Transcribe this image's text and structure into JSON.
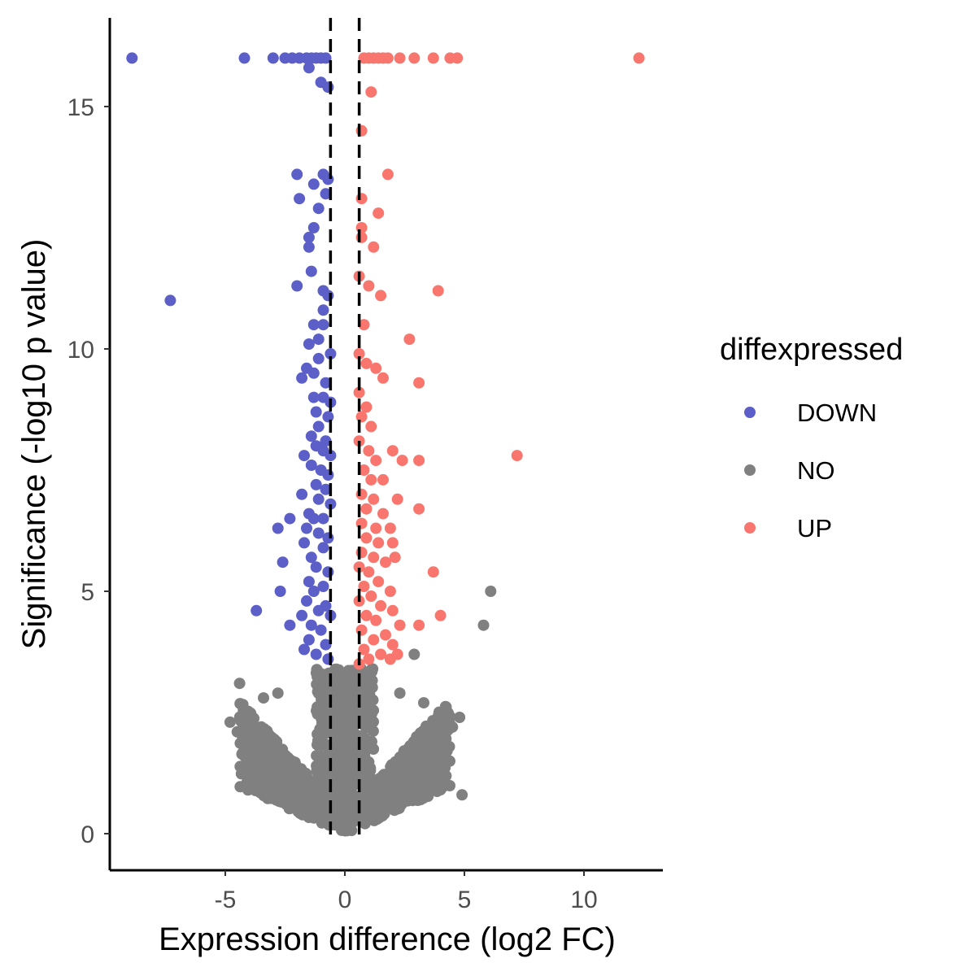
{
  "chart_data": {
    "type": "scatter",
    "title": "",
    "xlabel": "Expression difference (log2 FC)",
    "ylabel": "Significance (-log10 p value)",
    "xlim": [
      -9.5,
      13.5
    ],
    "ylim": [
      -0.7,
      17.0
    ],
    "x_ticks": [
      -5,
      0,
      5,
      10
    ],
    "x_tick_labels": [
      "-5",
      "0",
      "5",
      "10"
    ],
    "y_ticks": [
      0,
      5,
      10,
      15
    ],
    "y_tick_labels": [
      "0",
      "5",
      "10",
      "15"
    ],
    "grid": false,
    "vlines": [
      -0.6,
      0.6
    ],
    "legend": {
      "title": "diffexpressed",
      "position": "right",
      "entries": [
        {
          "label": "DOWN",
          "color": "#5b5fc7"
        },
        {
          "label": "NO",
          "color": "#808080"
        },
        {
          "label": "UP",
          "color": "#f8766d"
        }
      ]
    },
    "series": [
      {
        "name": "DOWN",
        "color": "#5b5fc7",
        "points": [
          [
            -8.9,
            16.0
          ],
          [
            -4.2,
            16.0
          ],
          [
            -3.0,
            16.0
          ],
          [
            -2.5,
            16.0
          ],
          [
            -2.2,
            16.0
          ],
          [
            -1.9,
            16.0
          ],
          [
            -1.6,
            16.0
          ],
          [
            -1.4,
            16.0
          ],
          [
            -1.2,
            16.0
          ],
          [
            -1.0,
            16.0
          ],
          [
            -0.8,
            16.0
          ],
          [
            -1.5,
            15.8
          ],
          [
            -1.0,
            15.5
          ],
          [
            -0.7,
            15.4
          ],
          [
            -2.0,
            13.6
          ],
          [
            -0.9,
            13.6
          ],
          [
            -0.7,
            13.5
          ],
          [
            -1.3,
            13.4
          ],
          [
            -0.8,
            13.2
          ],
          [
            -1.9,
            13.1
          ],
          [
            -1.1,
            12.9
          ],
          [
            -1.3,
            12.5
          ],
          [
            -1.5,
            12.3
          ],
          [
            -1.5,
            12.1
          ],
          [
            -1.4,
            11.6
          ],
          [
            -2.0,
            11.3
          ],
          [
            -0.9,
            11.2
          ],
          [
            -0.7,
            11.1
          ],
          [
            -7.3,
            11.0
          ],
          [
            -0.9,
            10.8
          ],
          [
            -1.3,
            10.5
          ],
          [
            -0.9,
            10.5
          ],
          [
            -1.1,
            10.2
          ],
          [
            -1.5,
            10.1
          ],
          [
            -0.6,
            9.9
          ],
          [
            -1.1,
            9.8
          ],
          [
            -1.6,
            9.6
          ],
          [
            -1.3,
            9.5
          ],
          [
            -1.8,
            9.4
          ],
          [
            -0.8,
            9.3
          ],
          [
            -0.9,
            9.0
          ],
          [
            -1.3,
            9.0
          ],
          [
            -0.6,
            8.9
          ],
          [
            -1.2,
            8.7
          ],
          [
            -0.7,
            8.6
          ],
          [
            -1.1,
            8.4
          ],
          [
            -1.4,
            8.2
          ],
          [
            -0.8,
            8.1
          ],
          [
            -1.2,
            8.0
          ],
          [
            -0.9,
            7.9
          ],
          [
            -1.7,
            7.8
          ],
          [
            -0.6,
            7.8
          ],
          [
            -1.4,
            7.6
          ],
          [
            -1.0,
            7.5
          ],
          [
            -0.7,
            7.4
          ],
          [
            -1.8,
            7.0
          ],
          [
            -1.2,
            7.2
          ],
          [
            -0.8,
            7.1
          ],
          [
            -1.1,
            6.9
          ],
          [
            -0.6,
            6.8
          ],
          [
            -1.5,
            6.6
          ],
          [
            -1.3,
            6.5
          ],
          [
            -0.9,
            6.5
          ],
          [
            -2.3,
            6.5
          ],
          [
            -1.6,
            6.3
          ],
          [
            -2.8,
            6.3
          ],
          [
            -1.1,
            6.2
          ],
          [
            -0.7,
            6.1
          ],
          [
            -1.7,
            6.0
          ],
          [
            -0.9,
            5.9
          ],
          [
            -1.4,
            5.7
          ],
          [
            -2.6,
            5.6
          ],
          [
            -1.2,
            5.5
          ],
          [
            -0.7,
            5.4
          ],
          [
            -1.5,
            5.2
          ],
          [
            -0.9,
            5.1
          ],
          [
            -2.7,
            5.0
          ],
          [
            -1.3,
            5.0
          ],
          [
            -1.6,
            4.8
          ],
          [
            -0.8,
            4.7
          ],
          [
            -1.1,
            4.6
          ],
          [
            -3.7,
            4.6
          ],
          [
            -1.8,
            4.5
          ],
          [
            -0.6,
            4.5
          ],
          [
            -1.4,
            4.3
          ],
          [
            -2.3,
            4.3
          ],
          [
            -1.0,
            4.2
          ],
          [
            -1.5,
            4.0
          ],
          [
            -0.8,
            3.9
          ],
          [
            -1.7,
            3.8
          ],
          [
            -1.2,
            3.7
          ],
          [
            -0.7,
            3.6
          ]
        ]
      },
      {
        "name": "UP",
        "color": "#f8766d",
        "points": [
          [
            0.8,
            16.0
          ],
          [
            1.0,
            16.0
          ],
          [
            1.2,
            16.0
          ],
          [
            1.4,
            16.0
          ],
          [
            1.6,
            16.0
          ],
          [
            1.8,
            16.0
          ],
          [
            2.3,
            16.0
          ],
          [
            2.9,
            16.0
          ],
          [
            3.7,
            16.0
          ],
          [
            4.4,
            16.0
          ],
          [
            4.7,
            16.0
          ],
          [
            12.3,
            16.0
          ],
          [
            1.1,
            15.3
          ],
          [
            0.7,
            14.5
          ],
          [
            1.8,
            13.6
          ],
          [
            0.7,
            13.1
          ],
          [
            1.4,
            12.8
          ],
          [
            0.7,
            12.5
          ],
          [
            0.7,
            12.3
          ],
          [
            1.2,
            12.1
          ],
          [
            0.6,
            11.5
          ],
          [
            1.0,
            11.3
          ],
          [
            1.5,
            11.1
          ],
          [
            3.9,
            11.2
          ],
          [
            0.8,
            10.5
          ],
          [
            2.7,
            10.2
          ],
          [
            0.6,
            9.9
          ],
          [
            0.9,
            9.7
          ],
          [
            1.3,
            9.6
          ],
          [
            1.6,
            9.4
          ],
          [
            3.1,
            9.3
          ],
          [
            0.6,
            9.1
          ],
          [
            0.9,
            8.8
          ],
          [
            0.7,
            8.6
          ],
          [
            1.1,
            8.4
          ],
          [
            0.6,
            8.1
          ],
          [
            1.0,
            7.9
          ],
          [
            2.0,
            7.9
          ],
          [
            1.3,
            7.7
          ],
          [
            2.4,
            7.7
          ],
          [
            3.1,
            7.7
          ],
          [
            7.2,
            7.8
          ],
          [
            0.8,
            7.5
          ],
          [
            1.1,
            7.3
          ],
          [
            1.6,
            7.3
          ],
          [
            0.7,
            7.0
          ],
          [
            1.2,
            6.9
          ],
          [
            2.2,
            6.9
          ],
          [
            0.9,
            6.7
          ],
          [
            1.6,
            6.6
          ],
          [
            3.1,
            6.7
          ],
          [
            0.7,
            6.4
          ],
          [
            1.3,
            6.3
          ],
          [
            1.9,
            6.3
          ],
          [
            0.9,
            6.1
          ],
          [
            1.4,
            6.0
          ],
          [
            2.0,
            6.0
          ],
          [
            0.7,
            5.8
          ],
          [
            1.2,
            5.7
          ],
          [
            2.1,
            5.7
          ],
          [
            1.7,
            5.6
          ],
          [
            0.6,
            5.5
          ],
          [
            1.0,
            5.4
          ],
          [
            3.7,
            5.4
          ],
          [
            1.4,
            5.2
          ],
          [
            0.8,
            5.1
          ],
          [
            1.9,
            5.0
          ],
          [
            1.1,
            4.9
          ],
          [
            0.6,
            4.8
          ],
          [
            1.5,
            4.7
          ],
          [
            2.0,
            4.6
          ],
          [
            4.0,
            4.5
          ],
          [
            0.9,
            4.5
          ],
          [
            1.3,
            4.4
          ],
          [
            2.3,
            4.3
          ],
          [
            3.1,
            4.3
          ],
          [
            0.7,
            4.2
          ],
          [
            1.7,
            4.1
          ],
          [
            1.2,
            4.0
          ],
          [
            2.0,
            3.9
          ],
          [
            0.8,
            3.8
          ],
          [
            1.5,
            3.7
          ],
          [
            2.2,
            3.7
          ],
          [
            1.0,
            3.6
          ],
          [
            1.9,
            3.6
          ],
          [
            0.6,
            3.5
          ]
        ]
      },
      {
        "name": "NO",
        "color": "#808080",
        "points": [
          [
            6.1,
            5.0
          ],
          [
            5.8,
            4.3
          ],
          [
            2.9,
            3.7
          ],
          [
            -4.4,
            3.1
          ],
          [
            4.8,
            2.4
          ],
          [
            4.5,
            2.2
          ],
          [
            4.1,
            2.1
          ],
          [
            -4.8,
            2.3
          ],
          [
            -4.5,
            2.1
          ],
          [
            4.9,
            0.8
          ],
          [
            3.0,
            2.0
          ],
          [
            3.3,
            2.7
          ],
          [
            -2.8,
            2.9
          ],
          [
            2.3,
            2.9
          ],
          [
            -3.4,
            2.8
          ]
        ],
        "cloud": {
          "x_halfwidth": 4.4,
          "peak_y": 3.4,
          "apex_y": 0.0,
          "count": 1400
        }
      }
    ]
  }
}
